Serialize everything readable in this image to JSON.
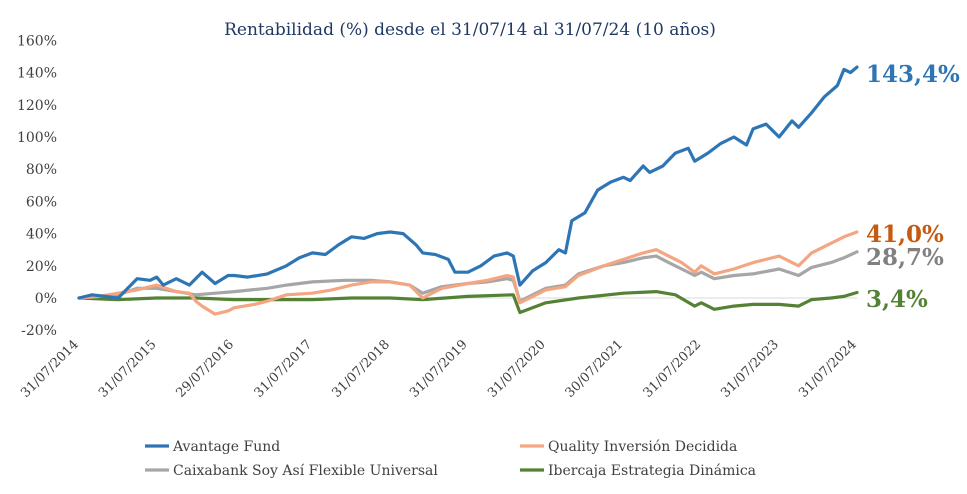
{
  "chart_data": {
    "type": "line",
    "title": "Rentabilidad (%) desde el 31/07/14 al 31/07/24 (10 años)",
    "xlabel": "",
    "ylabel": "",
    "ylim": [
      -20,
      160
    ],
    "yticks": [
      -20,
      0,
      20,
      40,
      60,
      80,
      100,
      120,
      140,
      160
    ],
    "ytick_labels": [
      "-20%",
      "0%",
      "20%",
      "40%",
      "60%",
      "80%",
      "100%",
      "120%",
      "140%",
      "160%"
    ],
    "x_range": [
      "2014-07-31",
      "2024-07-31"
    ],
    "xticks": [
      {
        "date": "2014-07-31",
        "label": "31/07/2014"
      },
      {
        "date": "2015-07-31",
        "label": "31/07/2015"
      },
      {
        "date": "2016-07-29",
        "label": "29/07/2016"
      },
      {
        "date": "2017-07-31",
        "label": "31/07/2017"
      },
      {
        "date": "2018-07-31",
        "label": "31/07/2018"
      },
      {
        "date": "2019-07-31",
        "label": "31/07/2019"
      },
      {
        "date": "2020-07-31",
        "label": "31/07/2020"
      },
      {
        "date": "2021-07-30",
        "label": "30/07/2021"
      },
      {
        "date": "2022-07-31",
        "label": "31/07/2022"
      },
      {
        "date": "2023-07-31",
        "label": "31/07/2023"
      },
      {
        "date": "2024-07-31",
        "label": "31/07/2024"
      }
    ],
    "grid": false,
    "legend_position": "bottom",
    "series": [
      {
        "name": "Avantage Fund",
        "color": "#2e75b6",
        "end_label": "143,4%",
        "end_label_color": "#2e75b6",
        "points": [
          [
            "2014-07-31",
            0
          ],
          [
            "2014-09-30",
            2
          ],
          [
            "2014-11-30",
            1
          ],
          [
            "2015-01-31",
            0
          ],
          [
            "2015-03-31",
            8
          ],
          [
            "2015-04-30",
            12
          ],
          [
            "2015-06-30",
            11
          ],
          [
            "2015-07-31",
            13
          ],
          [
            "2015-08-31",
            8
          ],
          [
            "2015-10-31",
            12
          ],
          [
            "2015-12-31",
            8
          ],
          [
            "2016-02-29",
            16
          ],
          [
            "2016-04-30",
            9
          ],
          [
            "2016-06-30",
            14
          ],
          [
            "2016-07-29",
            14
          ],
          [
            "2016-09-30",
            13
          ],
          [
            "2016-12-31",
            15
          ],
          [
            "2017-03-31",
            20
          ],
          [
            "2017-05-31",
            25
          ],
          [
            "2017-07-31",
            28
          ],
          [
            "2017-09-30",
            27
          ],
          [
            "2017-11-30",
            33
          ],
          [
            "2018-01-31",
            38
          ],
          [
            "2018-03-31",
            37
          ],
          [
            "2018-05-31",
            40
          ],
          [
            "2018-07-31",
            41
          ],
          [
            "2018-09-30",
            40
          ],
          [
            "2018-11-30",
            33
          ],
          [
            "2018-12-31",
            28
          ],
          [
            "2019-02-28",
            27
          ],
          [
            "2019-04-30",
            24
          ],
          [
            "2019-05-31",
            16
          ],
          [
            "2019-07-31",
            16
          ],
          [
            "2019-09-30",
            20
          ],
          [
            "2019-11-30",
            26
          ],
          [
            "2020-01-31",
            28
          ],
          [
            "2020-02-29",
            26
          ],
          [
            "2020-03-31",
            8
          ],
          [
            "2020-05-31",
            17
          ],
          [
            "2020-07-31",
            22
          ],
          [
            "2020-09-30",
            30
          ],
          [
            "2020-10-31",
            28
          ],
          [
            "2020-11-30",
            48
          ],
          [
            "2021-01-31",
            53
          ],
          [
            "2021-03-31",
            67
          ],
          [
            "2021-05-31",
            72
          ],
          [
            "2021-07-30",
            75
          ],
          [
            "2021-08-31",
            73
          ],
          [
            "2021-10-31",
            82
          ],
          [
            "2021-11-30",
            78
          ],
          [
            "2022-01-31",
            82
          ],
          [
            "2022-03-31",
            90
          ],
          [
            "2022-05-31",
            93
          ],
          [
            "2022-06-30",
            85
          ],
          [
            "2022-08-31",
            90
          ],
          [
            "2022-10-31",
            96
          ],
          [
            "2022-12-31",
            100
          ],
          [
            "2023-02-28",
            95
          ],
          [
            "2023-03-31",
            105
          ],
          [
            "2023-05-31",
            108
          ],
          [
            "2023-07-31",
            100
          ],
          [
            "2023-09-30",
            110
          ],
          [
            "2023-10-31",
            106
          ],
          [
            "2023-12-31",
            115
          ],
          [
            "2024-02-29",
            125
          ],
          [
            "2024-04-30",
            132
          ],
          [
            "2024-05-31",
            142
          ],
          [
            "2024-06-30",
            140
          ],
          [
            "2024-07-31",
            143.4
          ]
        ]
      },
      {
        "name": "Quality Inversión Decidida",
        "color": "#f4a582",
        "end_label": "41,0%",
        "end_label_color": "#c55a11",
        "points": [
          [
            "2014-07-31",
            0
          ],
          [
            "2014-10-31",
            1
          ],
          [
            "2015-01-31",
            3
          ],
          [
            "2015-04-30",
            5
          ],
          [
            "2015-07-31",
            8
          ],
          [
            "2015-10-31",
            4
          ],
          [
            "2015-12-31",
            3
          ],
          [
            "2016-01-31",
            -2
          ],
          [
            "2016-02-29",
            -5
          ],
          [
            "2016-04-30",
            -10
          ],
          [
            "2016-06-30",
            -8
          ],
          [
            "2016-07-29",
            -6
          ],
          [
            "2016-10-31",
            -4
          ],
          [
            "2016-12-31",
            -2
          ],
          [
            "2017-03-31",
            2
          ],
          [
            "2017-07-31",
            3
          ],
          [
            "2017-10-31",
            5
          ],
          [
            "2018-01-31",
            8
          ],
          [
            "2018-04-30",
            10
          ],
          [
            "2018-07-31",
            10
          ],
          [
            "2018-10-31",
            8
          ],
          [
            "2018-12-31",
            0
          ],
          [
            "2019-03-31",
            6
          ],
          [
            "2019-07-31",
            9
          ],
          [
            "2019-10-31",
            11
          ],
          [
            "2020-01-31",
            14
          ],
          [
            "2020-02-29",
            13
          ],
          [
            "2020-03-31",
            -3
          ],
          [
            "2020-07-31",
            5
          ],
          [
            "2020-10-31",
            7
          ],
          [
            "2020-12-31",
            14
          ],
          [
            "2021-04-30",
            20
          ],
          [
            "2021-07-30",
            24
          ],
          [
            "2021-10-31",
            28
          ],
          [
            "2021-12-31",
            30
          ],
          [
            "2022-02-28",
            26
          ],
          [
            "2022-04-30",
            22
          ],
          [
            "2022-06-30",
            16
          ],
          [
            "2022-07-31",
            20
          ],
          [
            "2022-09-30",
            15
          ],
          [
            "2022-12-31",
            18
          ],
          [
            "2023-03-31",
            22
          ],
          [
            "2023-07-31",
            26
          ],
          [
            "2023-10-31",
            20
          ],
          [
            "2023-12-31",
            28
          ],
          [
            "2024-03-31",
            34
          ],
          [
            "2024-05-31",
            38
          ],
          [
            "2024-07-31",
            41.0
          ]
        ]
      },
      {
        "name": "Caixabank Soy Así Flexible Universal",
        "color": "#a6a6a6",
        "end_label": "28,7%",
        "end_label_color": "#808080",
        "points": [
          [
            "2014-07-31",
            0
          ],
          [
            "2014-10-31",
            1
          ],
          [
            "2015-01-31",
            2
          ],
          [
            "2015-04-30",
            6
          ],
          [
            "2015-07-31",
            6
          ],
          [
            "2015-10-31",
            4
          ],
          [
            "2016-01-31",
            2
          ],
          [
            "2016-04-30",
            3
          ],
          [
            "2016-07-29",
            4
          ],
          [
            "2016-12-31",
            6
          ],
          [
            "2017-03-31",
            8
          ],
          [
            "2017-07-31",
            10
          ],
          [
            "2017-12-31",
            11
          ],
          [
            "2018-04-30",
            11
          ],
          [
            "2018-07-31",
            10
          ],
          [
            "2018-10-31",
            8
          ],
          [
            "2018-12-31",
            3
          ],
          [
            "2019-03-31",
            7
          ],
          [
            "2019-07-31",
            9
          ],
          [
            "2019-10-31",
            10
          ],
          [
            "2020-01-31",
            12
          ],
          [
            "2020-02-29",
            11
          ],
          [
            "2020-03-31",
            -2
          ],
          [
            "2020-07-31",
            6
          ],
          [
            "2020-10-31",
            8
          ],
          [
            "2020-12-31",
            15
          ],
          [
            "2021-04-30",
            20
          ],
          [
            "2021-07-30",
            22
          ],
          [
            "2021-10-31",
            25
          ],
          [
            "2021-12-31",
            26
          ],
          [
            "2022-02-28",
            22
          ],
          [
            "2022-04-30",
            18
          ],
          [
            "2022-06-30",
            14
          ],
          [
            "2022-07-31",
            16
          ],
          [
            "2022-09-30",
            12
          ],
          [
            "2022-12-31",
            14
          ],
          [
            "2023-03-31",
            15
          ],
          [
            "2023-07-31",
            18
          ],
          [
            "2023-10-31",
            14
          ],
          [
            "2023-12-31",
            19
          ],
          [
            "2024-03-31",
            22
          ],
          [
            "2024-05-31",
            25
          ],
          [
            "2024-07-31",
            28.7
          ]
        ]
      },
      {
        "name": "Ibercaja Estrategia Dinámica",
        "color": "#548235",
        "end_label": "3,4%",
        "end_label_color": "#548235",
        "points": [
          [
            "2014-07-31",
            0
          ],
          [
            "2015-01-31",
            -1
          ],
          [
            "2015-07-31",
            0
          ],
          [
            "2016-01-31",
            0
          ],
          [
            "2016-07-29",
            -1
          ],
          [
            "2017-01-31",
            -1
          ],
          [
            "2017-07-31",
            -1
          ],
          [
            "2018-01-31",
            0
          ],
          [
            "2018-07-31",
            0
          ],
          [
            "2018-12-31",
            -1
          ],
          [
            "2019-07-31",
            1
          ],
          [
            "2020-02-29",
            2
          ],
          [
            "2020-03-31",
            -9
          ],
          [
            "2020-07-31",
            -3
          ],
          [
            "2020-12-31",
            0
          ],
          [
            "2021-07-30",
            3
          ],
          [
            "2021-12-31",
            4
          ],
          [
            "2022-03-31",
            2
          ],
          [
            "2022-06-30",
            -5
          ],
          [
            "2022-07-31",
            -3
          ],
          [
            "2022-09-30",
            -7
          ],
          [
            "2022-12-31",
            -5
          ],
          [
            "2023-03-31",
            -4
          ],
          [
            "2023-07-31",
            -4
          ],
          [
            "2023-10-31",
            -5
          ],
          [
            "2023-12-31",
            -1
          ],
          [
            "2024-03-31",
            0
          ],
          [
            "2024-05-31",
            1
          ],
          [
            "2024-07-31",
            3.4
          ]
        ]
      }
    ]
  }
}
